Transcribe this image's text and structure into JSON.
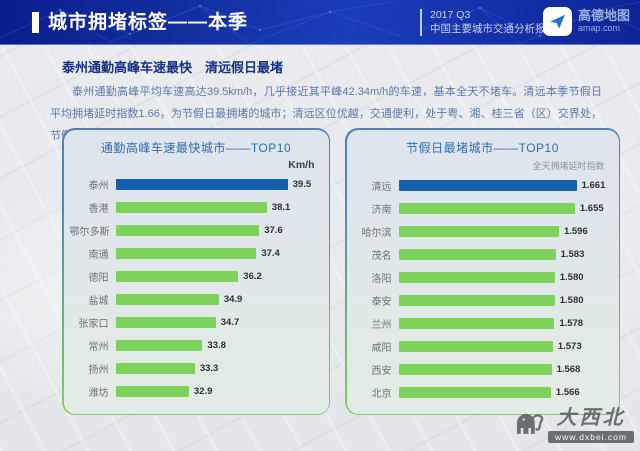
{
  "header": {
    "title": "城市拥堵标签——本季",
    "report_line1": "2017 Q3",
    "report_line2": "中国主要城市交通分析报告",
    "logo_name": "高德地图",
    "logo_domain": "amap.com"
  },
  "intro": {
    "subtitle": "泰州通勤高峰车速最快　清远假日最堵",
    "body": "泰州通勤高峰平均车速高达39.5km/h，几乎接近其平峰42.34m/h的车速，基本全天不堵车。清远本季节假日平均拥堵延时指数1.66，为节假日最拥堵的城市；清远区位优越，交通便利，处于粤、湘、桂三省（区）交界处，节假日高速过境频繁是影响因素之一。"
  },
  "chart_data": [
    {
      "type": "bar",
      "orientation": "horizontal",
      "title": "通勤高峰车速最快城市——TOP10",
      "unit": "Km/h",
      "categories": [
        "泰州",
        "香港",
        "鄂尔多斯",
        "南通",
        "德阳",
        "盐城",
        "张家口",
        "常州",
        "扬州",
        "潍坊"
      ],
      "values": [
        39.5,
        38.1,
        37.6,
        37.4,
        36.2,
        34.9,
        34.7,
        33.8,
        33.3,
        32.9
      ],
      "value_labels": [
        "39.5",
        "38.1",
        "37.6",
        "37.4",
        "36.2",
        "34.9",
        "34.7",
        "33.8",
        "33.3",
        "32.9"
      ],
      "xlim": [
        28,
        39.5
      ],
      "highlight_index": 0,
      "highlight_color": "#1460ae",
      "bar_color": "#7ed25b",
      "legend": "none",
      "grid": false
    },
    {
      "type": "bar",
      "orientation": "horizontal",
      "title": "节假日最堵城市——TOP10",
      "unit": "全天拥堵延时指数",
      "categories": [
        "清远",
        "济南",
        "哈尔滨",
        "茂名",
        "洛阳",
        "泰安",
        "兰州",
        "咸阳",
        "西安",
        "北京"
      ],
      "values": [
        1.661,
        1.655,
        1.596,
        1.583,
        1.58,
        1.58,
        1.578,
        1.573,
        1.568,
        1.566
      ],
      "value_labels": [
        "1.661",
        "1.655",
        "1.596",
        "1.583",
        "1.580",
        "1.580",
        "1.578",
        "1.573",
        "1.568",
        "1.566"
      ],
      "xlim": [
        1.0,
        1.661
      ],
      "highlight_index": 0,
      "highlight_color": "#1460ae",
      "bar_color": "#7ed25b",
      "legend": "none",
      "grid": false
    }
  ],
  "watermark": {
    "name": "大西北",
    "url": "www.dxbei.com"
  },
  "colors": {
    "header_bg": "#12309f",
    "accent_blue_bar": "#1460ae",
    "accent_green_bar": "#7ed25b",
    "panel_border_top": "#4d86c2",
    "panel_border_bottom": "#84cf6b",
    "subtitle_text": "#15318a",
    "body_text": "#5b79ae",
    "chart_title_text": "#2e6cb6"
  }
}
